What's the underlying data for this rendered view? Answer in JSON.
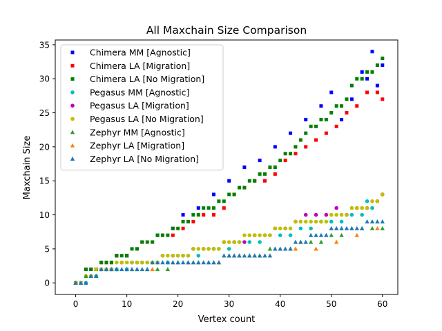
{
  "chart_data": {
    "type": "scatter",
    "title": "All Maxchain Size Comparison",
    "xlabel": "Vertex count",
    "ylabel": "Maxchain Size",
    "xlim": [
      -4,
      63
    ],
    "ylim": [
      -1.7,
      35.7
    ],
    "xticks": [
      0,
      10,
      20,
      30,
      40,
      50,
      60
    ],
    "yticks": [
      0,
      5,
      10,
      15,
      20,
      25,
      30,
      35
    ],
    "grid": false,
    "legend_position": "top-left",
    "series": [
      {
        "name": "Chimera MM [Agnostic]",
        "color": "#0000ff",
        "marker": "square",
        "x": [
          0,
          1,
          2,
          3,
          4,
          5,
          6,
          7,
          8,
          10,
          13,
          16,
          19,
          21,
          24,
          27,
          30,
          33,
          36,
          39,
          42,
          45,
          48,
          50,
          52,
          54,
          56,
          58,
          60,
          57,
          59
        ],
        "y": [
          0,
          0,
          2,
          2,
          2,
          3,
          3,
          3,
          4,
          4,
          6,
          7,
          8,
          10,
          11,
          13,
          15,
          17,
          18,
          20,
          22,
          24,
          26,
          28,
          24,
          27,
          31,
          34,
          32,
          30,
          29
        ]
      },
      {
        "name": "Chimera LA [Migration]",
        "color": "#ff0000",
        "marker": "square",
        "x": [
          0,
          1,
          2,
          3,
          4,
          5,
          6,
          7,
          8,
          10,
          12,
          13,
          15,
          17,
          19,
          21,
          23,
          25,
          27,
          29,
          31,
          33,
          35,
          37,
          39,
          41,
          43,
          45,
          47,
          49,
          51,
          53,
          55,
          57,
          59,
          60
        ],
        "y": [
          0,
          0,
          2,
          2,
          2,
          3,
          3,
          3,
          4,
          4,
          5,
          6,
          6,
          7,
          7,
          8,
          9,
          10,
          10,
          11,
          13,
          14,
          15,
          15,
          16,
          18,
          19,
          20,
          21,
          22,
          23,
          25,
          26,
          28,
          28,
          27
        ]
      },
      {
        "name": "Chimera LA [No Migration]",
        "color": "#008000",
        "marker": "square",
        "x": [
          0,
          1,
          2,
          3,
          4,
          5,
          6,
          7,
          8,
          9,
          10,
          11,
          12,
          13,
          14,
          15,
          16,
          17,
          18,
          19,
          20,
          21,
          22,
          23,
          24,
          25,
          26,
          27,
          28,
          29,
          30,
          31,
          32,
          33,
          34,
          35,
          36,
          37,
          38,
          39,
          40,
          41,
          42,
          43,
          44,
          45,
          46,
          47,
          48,
          49,
          50,
          51,
          52,
          53,
          54,
          55,
          56,
          57,
          58,
          59,
          60
        ],
        "y": [
          0,
          0,
          2,
          2,
          2,
          3,
          3,
          3,
          4,
          4,
          4,
          5,
          5,
          6,
          6,
          6,
          7,
          7,
          7,
          8,
          8,
          9,
          9,
          10,
          10,
          11,
          11,
          11,
          12,
          12,
          13,
          13,
          14,
          14,
          15,
          15,
          16,
          16,
          17,
          17,
          18,
          19,
          19,
          20,
          21,
          22,
          23,
          23,
          24,
          24,
          25,
          26,
          26,
          27,
          29,
          30,
          30,
          31,
          31,
          32,
          33
        ]
      },
      {
        "name": "Pegasus MM [Agnostic]",
        "color": "#00bfbf",
        "marker": "circle",
        "x": [
          0,
          2,
          4,
          6,
          8,
          10,
          12,
          14,
          16,
          18,
          20,
          22,
          24,
          26,
          28,
          30,
          32,
          34,
          36,
          38,
          40,
          42,
          44,
          46,
          48,
          50,
          52,
          54,
          56,
          57,
          58
        ],
        "y": [
          0,
          0,
          1,
          2,
          2,
          2,
          3,
          3,
          3,
          3,
          4,
          4,
          4,
          5,
          5,
          5,
          6,
          6,
          6,
          7,
          7,
          7,
          8,
          8,
          9,
          9,
          9,
          10,
          10,
          12,
          11
        ]
      },
      {
        "name": "Pegasus LA [Migration]",
        "color": "#bf00bf",
        "marker": "circle",
        "x": [
          0,
          3,
          5,
          7,
          9,
          11,
          13,
          15,
          17,
          19,
          21,
          23,
          25,
          27,
          29,
          31,
          33,
          35,
          37,
          39,
          41,
          43,
          45,
          47,
          49,
          51,
          53,
          55,
          57,
          59,
          60
        ],
        "y": [
          0,
          1,
          2,
          2,
          3,
          3,
          3,
          3,
          4,
          4,
          4,
          5,
          5,
          5,
          6,
          6,
          6,
          7,
          7,
          8,
          8,
          9,
          10,
          10,
          10,
          11,
          10,
          11,
          11,
          12,
          13
        ]
      },
      {
        "name": "Pegasus LA [No Migration]",
        "color": "#bfbf00",
        "marker": "circle",
        "x": [
          0,
          1,
          2,
          3,
          4,
          5,
          6,
          7,
          8,
          9,
          10,
          11,
          12,
          13,
          14,
          15,
          16,
          17,
          18,
          19,
          20,
          21,
          22,
          23,
          24,
          25,
          26,
          27,
          28,
          29,
          30,
          31,
          32,
          33,
          34,
          35,
          36,
          37,
          38,
          39,
          40,
          41,
          42,
          43,
          44,
          45,
          46,
          47,
          48,
          49,
          50,
          51,
          52,
          53,
          54,
          55,
          56,
          57,
          58,
          59,
          60
        ],
        "y": [
          0,
          0,
          1,
          1,
          2,
          2,
          2,
          2,
          3,
          3,
          3,
          3,
          3,
          3,
          3,
          3,
          3,
          4,
          4,
          4,
          4,
          4,
          4,
          5,
          5,
          5,
          5,
          5,
          5,
          6,
          6,
          6,
          6,
          7,
          7,
          7,
          7,
          7,
          7,
          8,
          8,
          8,
          8,
          9,
          9,
          9,
          9,
          9,
          9,
          9,
          10,
          10,
          10,
          10,
          11,
          11,
          11,
          11,
          12,
          12,
          13
        ]
      },
      {
        "name": "Zephyr MM [Agnostic]",
        "color": "#2ca02c",
        "marker": "triangle",
        "x": [
          0,
          2,
          4,
          6,
          8,
          10,
          12,
          14,
          16,
          18,
          20,
          22,
          24,
          26,
          28,
          30,
          32,
          34,
          36,
          38,
          40,
          42,
          44,
          46,
          48,
          50,
          52,
          54,
          56,
          58,
          60
        ],
        "y": [
          0,
          1,
          1,
          2,
          2,
          2,
          2,
          2,
          2,
          2,
          3,
          3,
          3,
          3,
          3,
          4,
          4,
          4,
          4,
          5,
          5,
          5,
          6,
          6,
          6,
          7,
          7,
          8,
          8,
          8,
          8
        ]
      },
      {
        "name": "Zephyr LA [Migration]",
        "color": "#ff7f0e",
        "marker": "triangle",
        "x": [
          0,
          3,
          7,
          11,
          15,
          19,
          23,
          27,
          31,
          35,
          39,
          43,
          47,
          51,
          55,
          59
        ],
        "y": [
          0,
          1,
          2,
          2,
          2,
          3,
          3,
          3,
          4,
          4,
          5,
          5,
          5,
          6,
          7,
          8
        ]
      },
      {
        "name": "Zephyr LA [No Migration]",
        "color": "#1f77b4",
        "marker": "triangle",
        "x": [
          0,
          1,
          2,
          3,
          4,
          5,
          6,
          7,
          8,
          9,
          10,
          11,
          12,
          13,
          14,
          15,
          16,
          17,
          18,
          19,
          20,
          21,
          22,
          23,
          24,
          25,
          26,
          27,
          28,
          29,
          30,
          31,
          32,
          33,
          34,
          35,
          36,
          37,
          38,
          39,
          40,
          41,
          42,
          43,
          44,
          45,
          46,
          47,
          48,
          49,
          50,
          51,
          52,
          53,
          54,
          55,
          56,
          57,
          58,
          59,
          60
        ],
        "y": [
          0,
          0,
          0,
          1,
          1,
          2,
          2,
          2,
          2,
          2,
          2,
          2,
          2,
          2,
          2,
          3,
          3,
          3,
          3,
          3,
          3,
          3,
          3,
          3,
          3,
          3,
          3,
          3,
          3,
          4,
          4,
          4,
          4,
          4,
          4,
          4,
          4,
          4,
          4,
          5,
          5,
          5,
          5,
          6,
          6,
          6,
          7,
          7,
          7,
          7,
          8,
          8,
          8,
          8,
          8,
          8,
          8,
          9,
          9,
          9,
          9
        ]
      }
    ]
  }
}
